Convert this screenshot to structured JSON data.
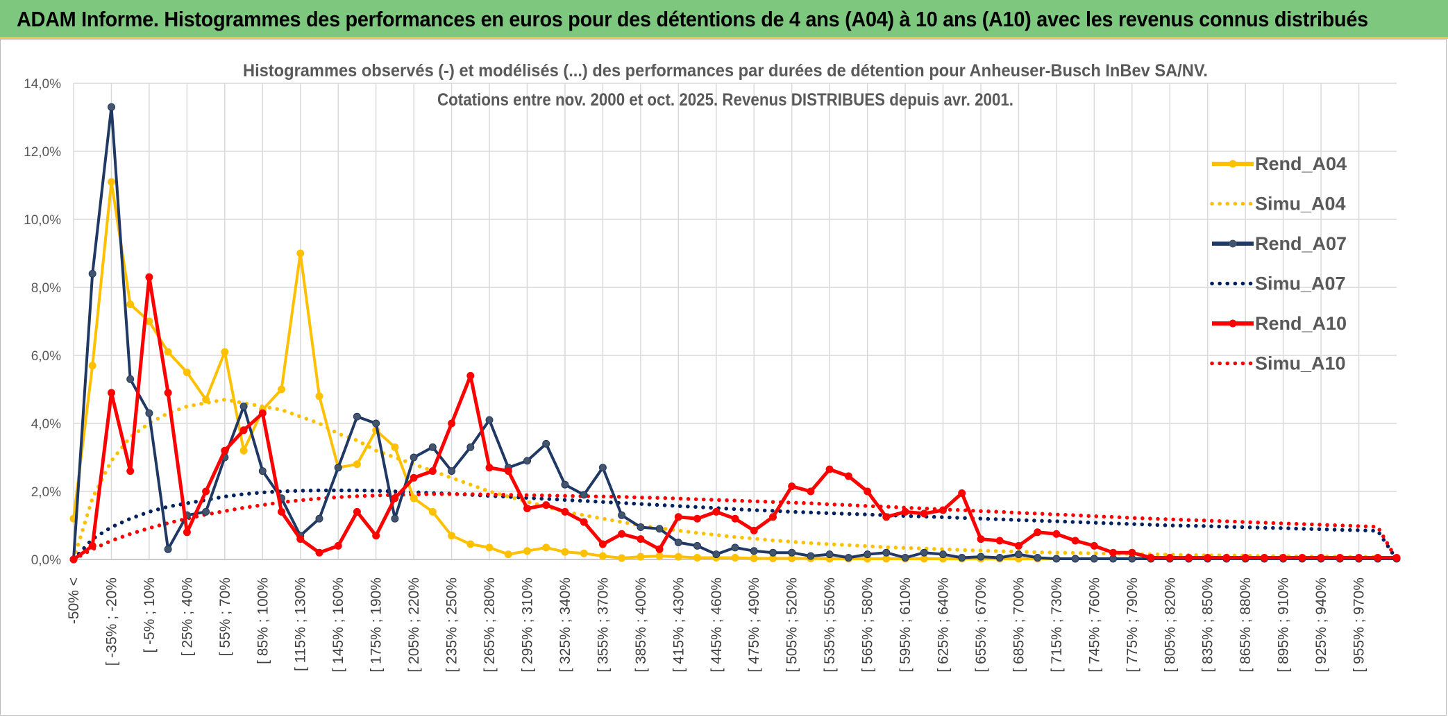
{
  "banner": {
    "title": "ADAM Informe. Histogrammes des performances en euros pour des détentions de 4 ans (A04) à 10 ans (A10) avec les revenus connus distribués"
  },
  "chart_data": {
    "type": "line",
    "title": "Histogrammes observés (-) et modélisés (...) des performances par durées de détention pour Anheuser-Busch InBev SA/NV.",
    "subtitle": "Cotations entre nov. 2000 et oct. 2025. Revenus DISTRIBUES depuis avr. 2001.",
    "xlabel": "",
    "ylabel": "",
    "ylim": [
      0,
      14
    ],
    "yticks": [
      "0,0%",
      "2,0%",
      "4,0%",
      "6,0%",
      "8,0%",
      "10,0%",
      "12,0%",
      "14,0%"
    ],
    "grid": true,
    "legend_position": "right",
    "x_tick_labels": [
      "-50% <",
      "[ -35% ; -20%",
      "[ -5% ; 10%",
      "[ 25% ; 40%",
      "[ 55% ; 70%",
      "[ 85% ; 100%",
      "[ 115% ; 130%",
      "[ 145% ; 160%",
      "[ 175% ; 190%",
      "[ 205% ; 220%",
      "[ 235% ; 250%",
      "[ 265% ; 280%",
      "[ 295% ; 310%",
      "[ 325% ; 340%",
      "[ 355% ; 370%",
      "[ 385% ; 400%",
      "[ 415% ; 430%",
      "[ 445% ; 460%",
      "[ 475% ; 490%",
      "[ 505% ; 520%",
      "[ 535% ; 550%",
      "[ 565% ; 580%",
      "[ 595% ; 610%",
      "[ 625% ; 640%",
      "[ 655% ; 670%",
      "[ 685% ; 700%",
      "[ 715% ; 730%",
      "[ 745% ; 760%",
      "[ 775% ; 790%",
      "[ 805% ; 820%",
      "[ 835% ; 850%",
      "[ 865% ; 880%",
      "[ 895% ; 910%",
      "[ 925% ; 940%",
      "[ 955% ; 970%"
    ],
    "series": [
      {
        "name": "Rend_A04",
        "style": "solid",
        "color": "#FFC000",
        "values": [
          1.2,
          5.7,
          11.1,
          7.5,
          7.0,
          6.1,
          5.5,
          4.7,
          6.1,
          3.2,
          4.4,
          5.0,
          9.0,
          4.8,
          2.7,
          2.8,
          3.8,
          3.3,
          1.8,
          1.4,
          0.7,
          0.45,
          0.35,
          0.15,
          0.25,
          0.35,
          0.22,
          0.18,
          0.1,
          0.04,
          0.08,
          0.1,
          0.08,
          0.05,
          0.05,
          0.05,
          0.03,
          0.03,
          0.03,
          0.03,
          0.02,
          0.02,
          0.02,
          0.02,
          0.02,
          0.02,
          0.02,
          0.02,
          0.02,
          0.02,
          0.02,
          0.02,
          0.02,
          0.02,
          0.02,
          0.02,
          0.02,
          0.02,
          0.02,
          0.02,
          0.02,
          0.02,
          0.02,
          0.02,
          0.02,
          0.02,
          0.02,
          0.02,
          0.02,
          0.02,
          0.02
        ]
      },
      {
        "name": "Simu_A04",
        "style": "dotted",
        "color": "#FFC000",
        "values": [
          0.0,
          1.8,
          2.9,
          3.6,
          4.0,
          4.3,
          4.5,
          4.6,
          4.7,
          4.6,
          4.5,
          4.4,
          4.2,
          4.0,
          3.7,
          3.5,
          3.2,
          3.0,
          2.8,
          2.6,
          2.4,
          2.2,
          2.0,
          1.85,
          1.7,
          1.55,
          1.4,
          1.3,
          1.2,
          1.1,
          1.0,
          0.92,
          0.85,
          0.78,
          0.72,
          0.66,
          0.61,
          0.56,
          0.52,
          0.48,
          0.45,
          0.42,
          0.39,
          0.36,
          0.34,
          0.32,
          0.3,
          0.28,
          0.26,
          0.24,
          0.23,
          0.21,
          0.2,
          0.19,
          0.18,
          0.17,
          0.16,
          0.15,
          0.14,
          0.13,
          0.12,
          0.12,
          0.11,
          0.1,
          0.1,
          0.09,
          0.09,
          0.08,
          0.08,
          0.07,
          0.0
        ]
      },
      {
        "name": "Rend_A07",
        "style": "solid",
        "color": "#1F3864",
        "values": [
          0.0,
          8.4,
          13.3,
          5.3,
          4.3,
          0.3,
          1.3,
          1.4,
          3.0,
          4.5,
          2.6,
          1.8,
          0.7,
          1.2,
          2.7,
          4.2,
          4.0,
          1.2,
          3.0,
          3.3,
          2.6,
          3.3,
          4.1,
          2.7,
          2.9,
          3.4,
          2.2,
          1.9,
          2.7,
          1.3,
          0.95,
          0.9,
          0.5,
          0.4,
          0.15,
          0.35,
          0.25,
          0.2,
          0.2,
          0.1,
          0.15,
          0.05,
          0.15,
          0.2,
          0.05,
          0.2,
          0.15,
          0.05,
          0.08,
          0.05,
          0.15,
          0.05,
          0.02,
          0.02,
          0.02,
          0.02,
          0.02,
          0.02,
          0.02,
          0.02,
          0.02,
          0.02,
          0.02,
          0.02,
          0.02,
          0.02,
          0.02,
          0.02,
          0.02,
          0.02,
          0.02
        ]
      },
      {
        "name": "Simu_A07",
        "style": "dotted",
        "color": "#002060",
        "values": [
          0.0,
          0.6,
          0.95,
          1.2,
          1.4,
          1.55,
          1.65,
          1.75,
          1.85,
          1.92,
          1.97,
          2.0,
          2.02,
          2.03,
          2.03,
          2.03,
          2.02,
          2.0,
          1.98,
          1.95,
          1.93,
          1.9,
          1.87,
          1.84,
          1.81,
          1.78,
          1.75,
          1.72,
          1.69,
          1.66,
          1.63,
          1.6,
          1.57,
          1.54,
          1.51,
          1.48,
          1.45,
          1.43,
          1.4,
          1.38,
          1.36,
          1.34,
          1.32,
          1.3,
          1.28,
          1.26,
          1.24,
          1.22,
          1.2,
          1.18,
          1.16,
          1.14,
          1.12,
          1.1,
          1.08,
          1.06,
          1.04,
          1.02,
          1.0,
          0.99,
          0.98,
          0.96,
          0.95,
          0.93,
          0.92,
          0.9,
          0.89,
          0.87,
          0.86,
          0.84,
          0.0
        ]
      },
      {
        "name": "Rend_A10",
        "style": "solid",
        "color": "#FF0000",
        "values": [
          0.0,
          0.4,
          4.9,
          2.6,
          8.3,
          4.9,
          0.8,
          2.0,
          3.2,
          3.8,
          4.3,
          1.4,
          0.6,
          0.2,
          0.4,
          1.4,
          0.7,
          1.8,
          2.4,
          2.6,
          4.0,
          5.4,
          2.7,
          2.6,
          1.5,
          1.6,
          1.4,
          1.1,
          0.45,
          0.75,
          0.6,
          0.3,
          1.25,
          1.2,
          1.4,
          1.2,
          0.85,
          1.25,
          2.15,
          2.0,
          2.65,
          2.45,
          2.0,
          1.25,
          1.4,
          1.35,
          1.45,
          1.95,
          0.6,
          0.55,
          0.4,
          0.8,
          0.75,
          0.55,
          0.4,
          0.2,
          0.2,
          0.05,
          0.05,
          0.05,
          0.05,
          0.05,
          0.05,
          0.05,
          0.05,
          0.05,
          0.05,
          0.05,
          0.05,
          0.05,
          0.05
        ]
      },
      {
        "name": "Simu_A10",
        "style": "dotted",
        "color": "#FF0000",
        "values": [
          0.0,
          0.3,
          0.55,
          0.75,
          0.92,
          1.07,
          1.2,
          1.32,
          1.42,
          1.52,
          1.6,
          1.68,
          1.74,
          1.79,
          1.83,
          1.86,
          1.88,
          1.9,
          1.91,
          1.92,
          1.92,
          1.92,
          1.91,
          1.9,
          1.89,
          1.88,
          1.87,
          1.86,
          1.85,
          1.84,
          1.82,
          1.81,
          1.79,
          1.77,
          1.75,
          1.73,
          1.71,
          1.69,
          1.67,
          1.65,
          1.62,
          1.6,
          1.57,
          1.55,
          1.52,
          1.5,
          1.47,
          1.45,
          1.42,
          1.4,
          1.37,
          1.35,
          1.32,
          1.3,
          1.27,
          1.25,
          1.22,
          1.2,
          1.18,
          1.16,
          1.14,
          1.12,
          1.1,
          1.08,
          1.06,
          1.04,
          1.02,
          1.0,
          0.98,
          0.96,
          0.0
        ]
      }
    ]
  }
}
